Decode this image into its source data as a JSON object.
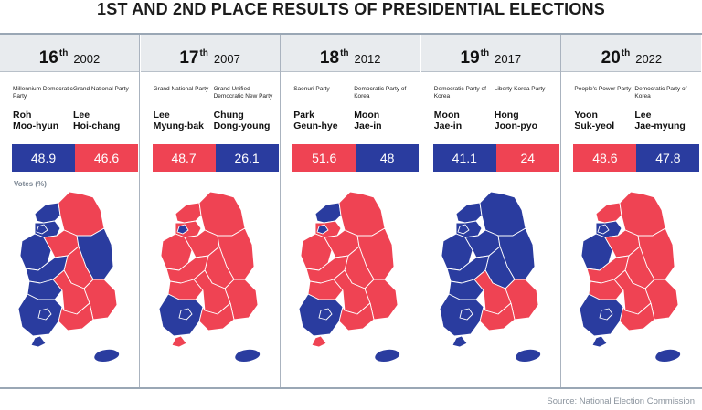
{
  "title": "1ST AND 2ND PLACE RESULTS OF PRESIDENTIAL ELECTIONS",
  "source": "Source: National Election Commission",
  "votes_label": "Votes (%)",
  "colors": {
    "blue": "#2a3c9f",
    "red": "#ef4353",
    "header_bg": "#e8ebee"
  },
  "chart_data": {
    "type": "bar",
    "title": "1ST AND 2ND PLACE RESULTS OF PRESIDENTIAL ELECTIONS",
    "ylabel": "Votes (%)",
    "categories": [
      "16th 2002",
      "17th 2007",
      "18th 2012",
      "19th 2017",
      "20th 2022"
    ],
    "elections": [
      {
        "ordinal": "16",
        "suffix": "th",
        "year": "2002",
        "first": {
          "party": "Millennium Democratic Party",
          "name_line1": "Roh",
          "name_line2": "Moo-hyun",
          "votes": 48.9,
          "color": "blue"
        },
        "second": {
          "party": "Grand National Party",
          "name_line1": "Lee",
          "name_line2": "Hoi-chang",
          "votes": 46.6,
          "color": "red"
        },
        "map": {
          "r1": "b",
          "r2": "b",
          "r3": "r",
          "r4": "b",
          "r5": "r",
          "r6": "b",
          "r7": "r",
          "r8": "b",
          "r9": "b",
          "r10": "b",
          "r11": "r",
          "r12": "r",
          "r13": "r",
          "r14": "b",
          "r15": "b",
          "r16": "b",
          "r17": "b"
        }
      },
      {
        "ordinal": "17",
        "suffix": "th",
        "year": "2007",
        "first": {
          "party": "Grand National Party",
          "name_line1": "Lee",
          "name_line2": "Myung-bak",
          "votes": 48.7,
          "color": "red"
        },
        "second": {
          "party": "Grand Unified Democratic New Party",
          "name_line1": "Chung",
          "name_line2": "Dong-young",
          "votes": 26.1,
          "color": "blue"
        },
        "map": {
          "r1": "r",
          "r2": "r",
          "r3": "r",
          "r4": "r",
          "r5": "r",
          "r6": "r",
          "r7": "r",
          "r8": "r",
          "r9": "r",
          "r10": "b",
          "r11": "r",
          "r12": "r",
          "r13": "r",
          "r14": "b",
          "r15": "b",
          "r16": "b",
          "r17": "r"
        }
      },
      {
        "ordinal": "18",
        "suffix": "th",
        "year": "2012",
        "first": {
          "party": "Saenuri Party",
          "name_line1": "Park",
          "name_line2": "Geun-hye",
          "votes": 51.6,
          "color": "red"
        },
        "second": {
          "party": "Democratic Party of Korea",
          "name_line1": "Moon",
          "name_line2": "Jae-in",
          "votes": 48,
          "color": "blue"
        },
        "map": {
          "r1": "b",
          "r2": "r",
          "r3": "r",
          "r4": "r",
          "r5": "r",
          "r6": "r",
          "r7": "r",
          "r8": "r",
          "r9": "r",
          "r10": "b",
          "r11": "r",
          "r12": "r",
          "r13": "r",
          "r14": "b",
          "r15": "b",
          "r16": "b",
          "r17": "r"
        }
      },
      {
        "ordinal": "19",
        "suffix": "th",
        "year": "2017",
        "first": {
          "party": "Democratic Party of Korea",
          "name_line1": "Moon",
          "name_line2": "Jae-in",
          "votes": 41.1,
          "color": "blue"
        },
        "second": {
          "party": "Liberty Korea Party",
          "name_line1": "Hong",
          "name_line2": "Joon-pyo",
          "votes": 24,
          "color": "red"
        },
        "map": {
          "r1": "b",
          "r2": "b",
          "r3": "b",
          "r4": "b",
          "r5": "b",
          "r6": "b",
          "r7": "b",
          "r8": "b",
          "r9": "b",
          "r10": "b",
          "r11": "r",
          "r12": "r",
          "r13": "r",
          "r14": "b",
          "r15": "b",
          "r16": "b",
          "r17": "b"
        }
      },
      {
        "ordinal": "20",
        "suffix": "th",
        "year": "2022",
        "first": {
          "party": "People's Power Party",
          "name_line1": "Yoon",
          "name_line2": "Suk-yeol",
          "votes": 48.6,
          "color": "red"
        },
        "second": {
          "party": "Democratic Party of Korea",
          "name_line1": "Lee",
          "name_line2": "Jae-myung",
          "votes": 47.8,
          "color": "blue"
        },
        "map": {
          "r1": "r",
          "r2": "b",
          "r3": "r",
          "r4": "b",
          "r5": "r",
          "r6": "r",
          "r7": "r",
          "r8": "r",
          "r9": "r",
          "r10": "b",
          "r11": "r",
          "r12": "r",
          "r13": "r",
          "r14": "b",
          "r15": "b",
          "r16": "b",
          "r17": "b"
        }
      }
    ]
  }
}
